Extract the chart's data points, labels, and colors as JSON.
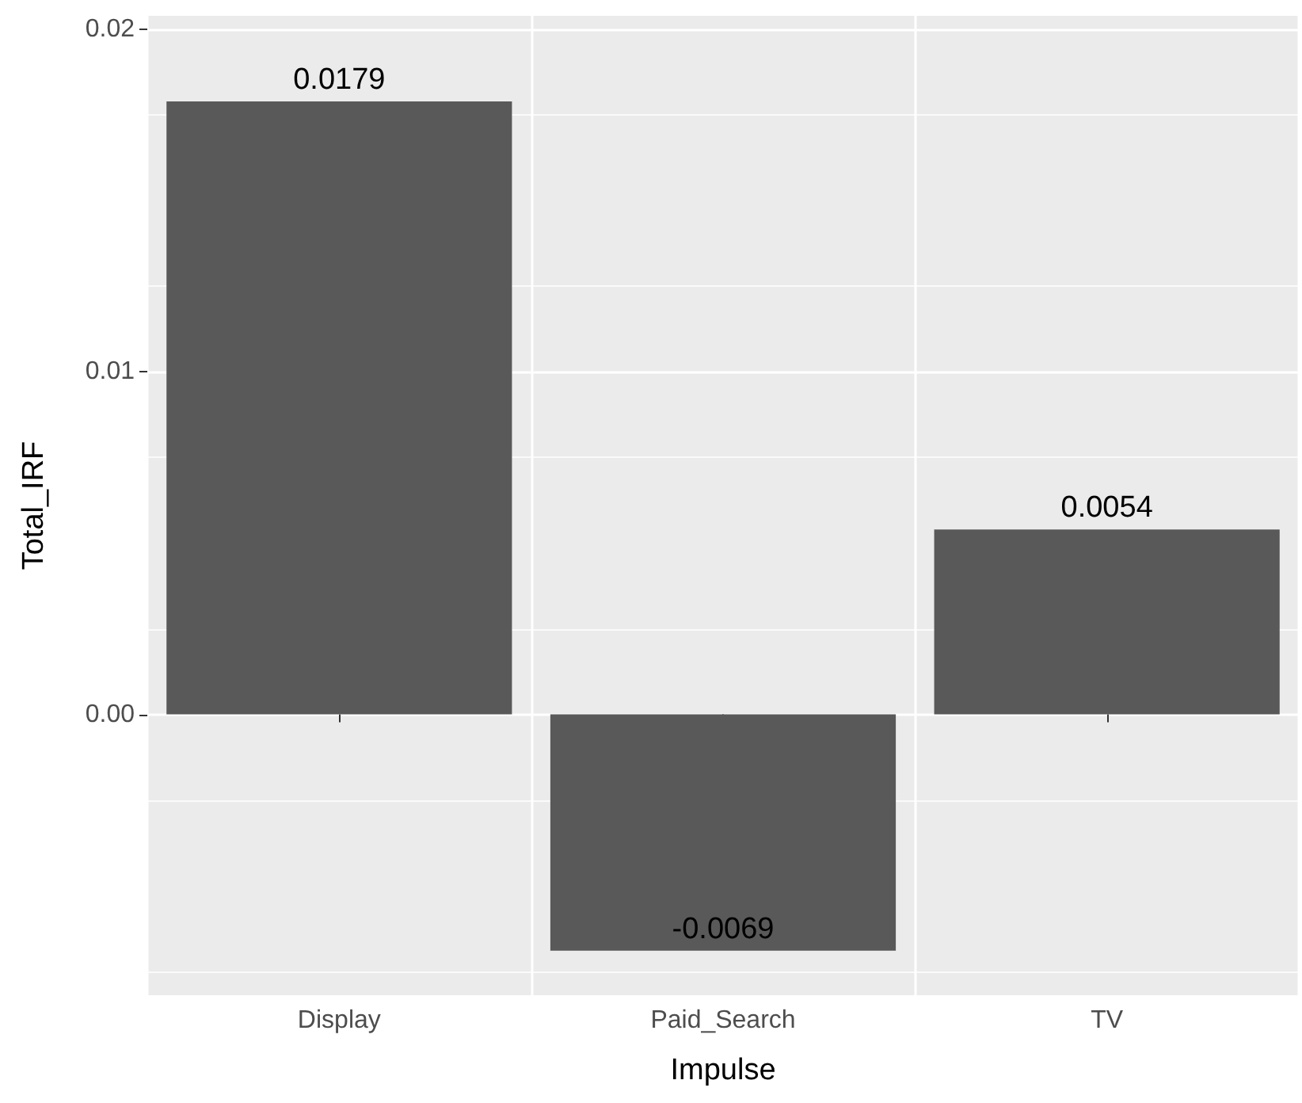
{
  "chart_data": {
    "type": "bar",
    "xlabel": "Impulse",
    "ylabel": "Total_IRF",
    "categories": [
      "Display",
      "Paid_Search",
      "TV"
    ],
    "values": [
      0.0179,
      -0.0069,
      0.0054
    ],
    "color": "#595959",
    "ylim": [
      -0.0082,
      0.0204
    ],
    "yticks": [
      {
        "value": 0,
        "label": "0.00"
      },
      {
        "value": 0.01,
        "label": "0.01"
      },
      {
        "value": 0.02,
        "label": "0.02"
      }
    ],
    "grid": true,
    "data_labels": true
  }
}
